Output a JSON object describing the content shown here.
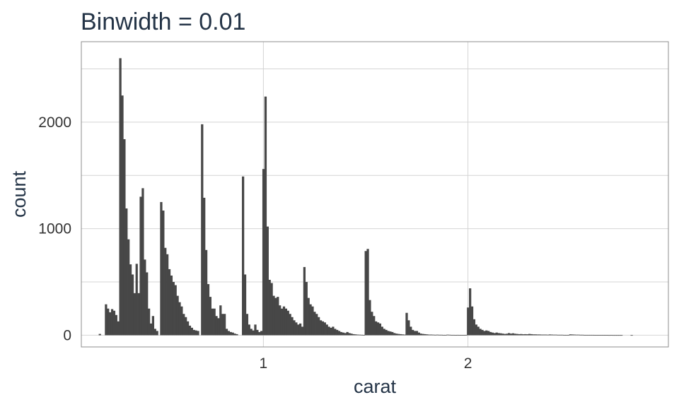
{
  "chart_data": {
    "type": "bar",
    "title": "Binwidth = 0.01",
    "xlabel": "carat",
    "ylabel": "count",
    "binwidth": 0.01,
    "xlim": [
      0.11,
      2.98
    ],
    "ylim": [
      -110,
      2755
    ],
    "x_ticks": [
      1,
      2
    ],
    "y_ticks": [
      0,
      1000,
      2000
    ],
    "grid": true,
    "bar_color": "#474747",
    "grid_color": "#d4d4d4",
    "panel_border_color": "#8c8c8c",
    "bins": [
      [
        0.2,
        12
      ],
      [
        0.23,
        290
      ],
      [
        0.24,
        250
      ],
      [
        0.25,
        215
      ],
      [
        0.26,
        245
      ],
      [
        0.27,
        230
      ],
      [
        0.28,
        190
      ],
      [
        0.29,
        130
      ],
      [
        0.3,
        2600
      ],
      [
        0.31,
        2250
      ],
      [
        0.32,
        1840
      ],
      [
        0.33,
        1190
      ],
      [
        0.34,
        900
      ],
      [
        0.35,
        665
      ],
      [
        0.36,
        570
      ],
      [
        0.37,
        395
      ],
      [
        0.38,
        670
      ],
      [
        0.39,
        395
      ],
      [
        0.4,
        1300
      ],
      [
        0.41,
        1380
      ],
      [
        0.42,
        710
      ],
      [
        0.43,
        590
      ],
      [
        0.44,
        250
      ],
      [
        0.45,
        110
      ],
      [
        0.46,
        180
      ],
      [
        0.47,
        60
      ],
      [
        0.48,
        40
      ],
      [
        0.5,
        1250
      ],
      [
        0.51,
        1170
      ],
      [
        0.52,
        820
      ],
      [
        0.53,
        760
      ],
      [
        0.54,
        620
      ],
      [
        0.55,
        560
      ],
      [
        0.56,
        500
      ],
      [
        0.57,
        470
      ],
      [
        0.58,
        370
      ],
      [
        0.59,
        310
      ],
      [
        0.6,
        270
      ],
      [
        0.61,
        200
      ],
      [
        0.62,
        170
      ],
      [
        0.63,
        130
      ],
      [
        0.64,
        90
      ],
      [
        0.65,
        70
      ],
      [
        0.66,
        50
      ],
      [
        0.67,
        45
      ],
      [
        0.68,
        40
      ],
      [
        0.7,
        1980
      ],
      [
        0.71,
        1290
      ],
      [
        0.72,
        800
      ],
      [
        0.73,
        480
      ],
      [
        0.74,
        360
      ],
      [
        0.75,
        250
      ],
      [
        0.76,
        250
      ],
      [
        0.77,
        180
      ],
      [
        0.78,
        160
      ],
      [
        0.79,
        280
      ],
      [
        0.8,
        200
      ],
      [
        0.81,
        200
      ],
      [
        0.82,
        60
      ],
      [
        0.83,
        40
      ],
      [
        0.84,
        30
      ],
      [
        0.85,
        25
      ],
      [
        0.86,
        15
      ],
      [
        0.87,
        10
      ],
      [
        0.9,
        1490
      ],
      [
        0.91,
        570
      ],
      [
        0.92,
        200
      ],
      [
        0.93,
        100
      ],
      [
        0.94,
        60
      ],
      [
        0.95,
        45
      ],
      [
        0.96,
        100
      ],
      [
        0.97,
        50
      ],
      [
        0.98,
        30
      ],
      [
        0.99,
        40
      ],
      [
        1.0,
        1560
      ],
      [
        1.01,
        2240
      ],
      [
        1.02,
        1020
      ],
      [
        1.03,
        520
      ],
      [
        1.04,
        490
      ],
      [
        1.05,
        370
      ],
      [
        1.06,
        350
      ],
      [
        1.07,
        360
      ],
      [
        1.08,
        280
      ],
      [
        1.09,
        250
      ],
      [
        1.1,
        270
      ],
      [
        1.11,
        250
      ],
      [
        1.12,
        230
      ],
      [
        1.13,
        200
      ],
      [
        1.14,
        170
      ],
      [
        1.15,
        140
      ],
      [
        1.16,
        120
      ],
      [
        1.17,
        100
      ],
      [
        1.18,
        110
      ],
      [
        1.19,
        80
      ],
      [
        1.2,
        640
      ],
      [
        1.21,
        500
      ],
      [
        1.22,
        350
      ],
      [
        1.23,
        290
      ],
      [
        1.24,
        270
      ],
      [
        1.25,
        220
      ],
      [
        1.26,
        200
      ],
      [
        1.27,
        170
      ],
      [
        1.28,
        140
      ],
      [
        1.29,
        130
      ],
      [
        1.3,
        120
      ],
      [
        1.31,
        100
      ],
      [
        1.32,
        80
      ],
      [
        1.33,
        70
      ],
      [
        1.34,
        80
      ],
      [
        1.35,
        60
      ],
      [
        1.36,
        50
      ],
      [
        1.37,
        40
      ],
      [
        1.38,
        30
      ],
      [
        1.39,
        25
      ],
      [
        1.4,
        20
      ],
      [
        1.41,
        30
      ],
      [
        1.42,
        20
      ],
      [
        1.43,
        15
      ],
      [
        1.44,
        10
      ],
      [
        1.45,
        8
      ],
      [
        1.46,
        6
      ],
      [
        1.47,
        5
      ],
      [
        1.48,
        4
      ],
      [
        1.49,
        3
      ],
      [
        1.5,
        790
      ],
      [
        1.51,
        810
      ],
      [
        1.52,
        330
      ],
      [
        1.53,
        220
      ],
      [
        1.54,
        180
      ],
      [
        1.55,
        130
      ],
      [
        1.56,
        120
      ],
      [
        1.57,
        110
      ],
      [
        1.58,
        80
      ],
      [
        1.59,
        60
      ],
      [
        1.6,
        50
      ],
      [
        1.61,
        40
      ],
      [
        1.62,
        35
      ],
      [
        1.63,
        30
      ],
      [
        1.64,
        20
      ],
      [
        1.65,
        15
      ],
      [
        1.66,
        12
      ],
      [
        1.67,
        10
      ],
      [
        1.68,
        8
      ],
      [
        1.69,
        6
      ],
      [
        1.7,
        210
      ],
      [
        1.71,
        140
      ],
      [
        1.72,
        80
      ],
      [
        1.73,
        50
      ],
      [
        1.74,
        40
      ],
      [
        1.75,
        40
      ],
      [
        1.76,
        25
      ],
      [
        1.77,
        15
      ],
      [
        1.78,
        12
      ],
      [
        1.79,
        10
      ],
      [
        1.8,
        8
      ],
      [
        1.81,
        6
      ],
      [
        1.82,
        6
      ],
      [
        1.83,
        5
      ],
      [
        1.84,
        4
      ],
      [
        1.85,
        5
      ],
      [
        1.86,
        4
      ],
      [
        1.87,
        4
      ],
      [
        1.88,
        3
      ],
      [
        1.89,
        3
      ],
      [
        1.9,
        5
      ],
      [
        1.91,
        4
      ],
      [
        1.92,
        3
      ],
      [
        1.93,
        3
      ],
      [
        1.94,
        2
      ],
      [
        1.95,
        3
      ],
      [
        1.96,
        2
      ],
      [
        1.97,
        2
      ],
      [
        1.98,
        2
      ],
      [
        1.99,
        3
      ],
      [
        2.0,
        260
      ],
      [
        2.01,
        440
      ],
      [
        2.02,
        270
      ],
      [
        2.03,
        150
      ],
      [
        2.04,
        100
      ],
      [
        2.05,
        80
      ],
      [
        2.06,
        60
      ],
      [
        2.07,
        50
      ],
      [
        2.08,
        40
      ],
      [
        2.09,
        45
      ],
      [
        2.1,
        40
      ],
      [
        2.11,
        30
      ],
      [
        2.12,
        25
      ],
      [
        2.13,
        20
      ],
      [
        2.14,
        25
      ],
      [
        2.15,
        20
      ],
      [
        2.16,
        18
      ],
      [
        2.17,
        15
      ],
      [
        2.18,
        12
      ],
      [
        2.19,
        14
      ],
      [
        2.2,
        20
      ],
      [
        2.21,
        15
      ],
      [
        2.22,
        18
      ],
      [
        2.23,
        14
      ],
      [
        2.24,
        12
      ],
      [
        2.25,
        10
      ],
      [
        2.26,
        11
      ],
      [
        2.27,
        9
      ],
      [
        2.28,
        10
      ],
      [
        2.29,
        9
      ],
      [
        2.3,
        12
      ],
      [
        2.31,
        10
      ],
      [
        2.32,
        8
      ],
      [
        2.33,
        8
      ],
      [
        2.34,
        7
      ],
      [
        2.35,
        7
      ],
      [
        2.36,
        6
      ],
      [
        2.37,
        6
      ],
      [
        2.38,
        6
      ],
      [
        2.39,
        5
      ],
      [
        2.4,
        7
      ],
      [
        2.41,
        6
      ],
      [
        2.42,
        5
      ],
      [
        2.43,
        5
      ],
      [
        2.44,
        4
      ],
      [
        2.45,
        4
      ],
      [
        2.46,
        4
      ],
      [
        2.47,
        3
      ],
      [
        2.48,
        3
      ],
      [
        2.49,
        3
      ],
      [
        2.5,
        8
      ],
      [
        2.51,
        7
      ],
      [
        2.52,
        6
      ],
      [
        2.53,
        5
      ],
      [
        2.54,
        5
      ],
      [
        2.55,
        4
      ],
      [
        2.56,
        4
      ],
      [
        2.57,
        3
      ],
      [
        2.58,
        3
      ],
      [
        2.59,
        3
      ],
      [
        2.6,
        3
      ],
      [
        2.61,
        3
      ],
      [
        2.62,
        2
      ],
      [
        2.63,
        2
      ],
      [
        2.64,
        2
      ],
      [
        2.65,
        2
      ],
      [
        2.66,
        2
      ],
      [
        2.67,
        2
      ],
      [
        2.68,
        2
      ],
      [
        2.69,
        1
      ],
      [
        2.7,
        2
      ],
      [
        2.71,
        1
      ],
      [
        2.72,
        1
      ],
      [
        2.73,
        1
      ],
      [
        2.74,
        1
      ],
      [
        2.75,
        1
      ],
      [
        2.8,
        1
      ]
    ]
  }
}
